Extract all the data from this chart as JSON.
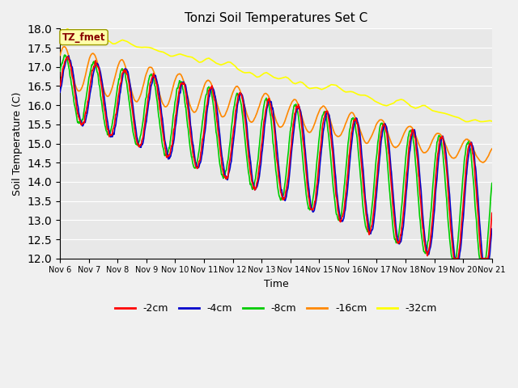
{
  "title": "Tonzi Soil Temperatures Set C",
  "xlabel": "Time",
  "ylabel": "Soil Temperature (C)",
  "ylim": [
    12.0,
    18.0
  ],
  "yticks": [
    12.0,
    12.5,
    13.0,
    13.5,
    14.0,
    14.5,
    15.0,
    15.5,
    16.0,
    16.5,
    17.0,
    17.5,
    18.0
  ],
  "colors": {
    "-2cm": "#ff0000",
    "-4cm": "#0000cc",
    "-8cm": "#00cc00",
    "-16cm": "#ff8800",
    "-32cm": "#ffff00"
  },
  "legend_label": "TZ_fmet",
  "n_days": 15,
  "start_day": 6,
  "points_per_day": 96,
  "figsize": [
    6.4,
    4.8
  ],
  "dpi": 100
}
